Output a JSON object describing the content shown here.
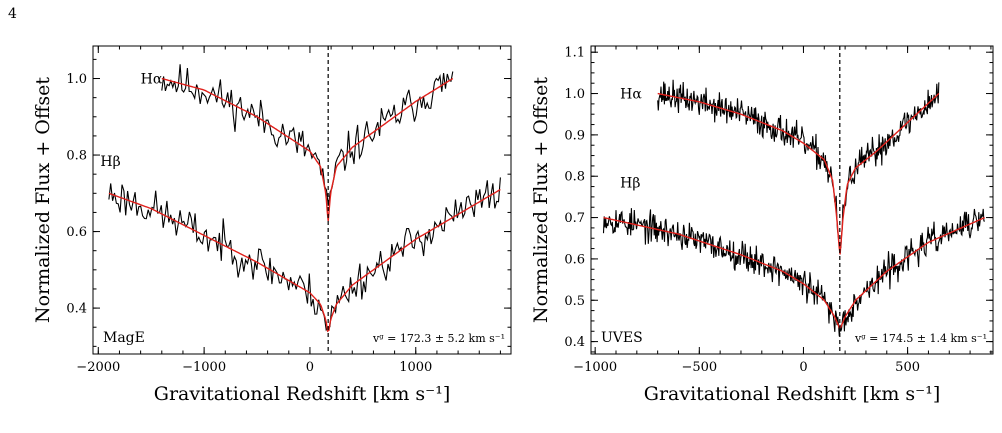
{
  "page_number": "4",
  "colors": {
    "data": "#000000",
    "model": "#e0201b",
    "marker": "#000000"
  },
  "chart_data": [
    {
      "type": "line",
      "instrument": "MagE",
      "xlabel": "Gravitational Redshift [km s⁻¹]",
      "ylabel": "Normalized Flux + Offset",
      "xlim": [
        -2050,
        1900
      ],
      "ylim": [
        0.28,
        1.085
      ],
      "xticks": [
        -2000,
        -1000,
        0,
        1000
      ],
      "xtick_labels": [
        "−2000",
        "−1000",
        "0",
        "1000"
      ],
      "yticks": [
        0.4,
        0.6,
        0.8,
        1.0
      ],
      "ytick_labels": [
        "0.4",
        "0.6",
        "0.8",
        "1.0"
      ],
      "vline_x": 172.3,
      "annotation": "vᵍ = 172.3 ± 5.2 km s⁻¹",
      "series": [
        {
          "name": "Hα",
          "label_pos": [
            -1600,
            1.0
          ],
          "xmin": -1400,
          "xmax": 1350,
          "x": [
            -1400,
            -1000,
            -500,
            0,
            100,
            150,
            172,
            195,
            250,
            400,
            700,
            1000,
            1350
          ],
          "y": [
            1.0,
            0.97,
            0.9,
            0.81,
            0.77,
            0.7,
            0.625,
            0.7,
            0.77,
            0.82,
            0.88,
            0.94,
            1.0
          ],
          "noise": 0.025,
          "npts": 160,
          "seed": 11
        },
        {
          "name": "Hβ",
          "label_pos": [
            -1980,
            0.785
          ],
          "xmin": -1900,
          "xmax": 1800,
          "x": [
            -1900,
            -1500,
            -1000,
            -500,
            0,
            100,
            150,
            172,
            195,
            250,
            400,
            1000,
            1800
          ],
          "y": [
            0.7,
            0.66,
            0.59,
            0.52,
            0.44,
            0.41,
            0.37,
            0.33,
            0.37,
            0.41,
            0.46,
            0.58,
            0.71
          ],
          "noise": 0.025,
          "npts": 210,
          "seed": 23
        }
      ]
    },
    {
      "type": "line",
      "instrument": "UVES",
      "xlabel": "Gravitational Redshift [km s⁻¹]",
      "ylabel": "Normalized Flux + Offset",
      "xlim": [
        -1020,
        910
      ],
      "ylim": [
        0.37,
        1.115
      ],
      "xticks": [
        -1000,
        -500,
        0,
        500
      ],
      "xtick_labels": [
        "−1000",
        "−500",
        "0",
        "500"
      ],
      "yticks": [
        0.4,
        0.5,
        0.6,
        0.7,
        0.8,
        0.9,
        1.0,
        1.1
      ],
      "ytick_labels": [
        "0.4",
        "0.5",
        "0.6",
        "0.7",
        "0.8",
        "0.9",
        "1.0",
        "1.1"
      ],
      "vline_x": 174.5,
      "annotation": "vᵍ = 174.5 ± 1.4 km s⁻¹",
      "series": [
        {
          "name": "Hα",
          "label_pos": [
            -880,
            1.0
          ],
          "xmin": -700,
          "xmax": 650,
          "x": [
            -700,
            -500,
            -300,
            -100,
            0,
            100,
            140,
            160,
            175,
            190,
            210,
            250,
            350,
            500,
            650
          ],
          "y": [
            1.0,
            0.98,
            0.95,
            0.91,
            0.88,
            0.84,
            0.79,
            0.7,
            0.605,
            0.7,
            0.78,
            0.82,
            0.86,
            0.93,
            1.0
          ],
          "noise": 0.018,
          "npts": 420,
          "seed": 37
        },
        {
          "name": "Hβ",
          "label_pos": [
            -880,
            0.785
          ],
          "xmin": -960,
          "xmax": 870,
          "x": [
            -960,
            -600,
            -300,
            -100,
            0,
            100,
            150,
            175,
            200,
            250,
            400,
            600,
            870
          ],
          "y": [
            0.7,
            0.66,
            0.61,
            0.57,
            0.54,
            0.5,
            0.46,
            0.43,
            0.46,
            0.5,
            0.57,
            0.64,
            0.7
          ],
          "noise": 0.018,
          "npts": 520,
          "seed": 53
        }
      ]
    }
  ]
}
